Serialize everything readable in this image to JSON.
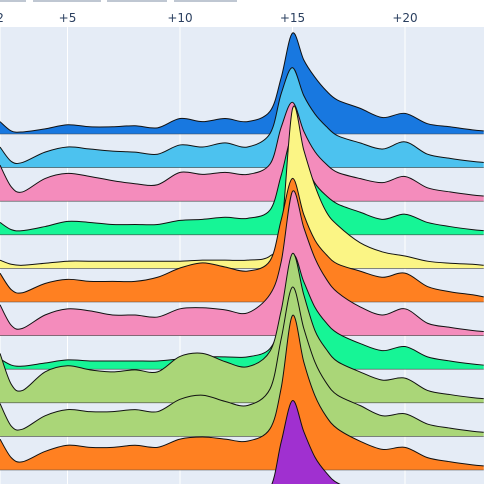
{
  "chart_data": {
    "type": "area",
    "subtype": "ridgeline",
    "title": "",
    "xlabel": "",
    "ylabel": "",
    "xlim": [
      2,
      23.5
    ],
    "grid": true,
    "legend": "none",
    "x_ticks": [
      {
        "value": 2,
        "label": "2"
      },
      {
        "value": 5,
        "label": "+5"
      },
      {
        "value": 10,
        "label": "+10"
      },
      {
        "value": 15,
        "label": "+15"
      },
      {
        "value": 20,
        "label": "+20"
      }
    ],
    "x": [
      2,
      2.5,
      3,
      4,
      5,
      6,
      7,
      8,
      9,
      10,
      11,
      12,
      13,
      14,
      14.5,
      15,
      15.5,
      16,
      16.5,
      17,
      18,
      19,
      20,
      21,
      22,
      23,
      23.5
    ],
    "series": [
      {
        "color": "#1878e0",
        "values": [
          0.12,
          0.03,
          0.02,
          0.05,
          0.09,
          0.07,
          0.07,
          0.08,
          0.06,
          0.15,
          0.12,
          0.15,
          0.12,
          0.22,
          0.55,
          0.98,
          0.72,
          0.55,
          0.42,
          0.33,
          0.25,
          0.16,
          0.2,
          0.1,
          0.07,
          0.04,
          0.03
        ]
      },
      {
        "color": "#4cc2ef",
        "values": [
          0.2,
          0.06,
          0.05,
          0.15,
          0.2,
          0.18,
          0.16,
          0.15,
          0.13,
          0.22,
          0.2,
          0.24,
          0.2,
          0.33,
          0.72,
          0.97,
          0.7,
          0.52,
          0.4,
          0.31,
          0.24,
          0.18,
          0.25,
          0.13,
          0.09,
          0.06,
          0.05
        ]
      },
      {
        "color": "#f48cbc",
        "values": [
          0.35,
          0.14,
          0.09,
          0.22,
          0.27,
          0.24,
          0.2,
          0.17,
          0.16,
          0.28,
          0.26,
          0.28,
          0.26,
          0.36,
          0.72,
          0.96,
          0.68,
          0.48,
          0.36,
          0.28,
          0.22,
          0.18,
          0.24,
          0.13,
          0.09,
          0.06,
          0.05
        ]
      },
      {
        "color": "#16f596",
        "values": [
          0.12,
          0.05,
          0.04,
          0.08,
          0.13,
          0.12,
          0.1,
          0.1,
          0.1,
          0.14,
          0.15,
          0.17,
          0.16,
          0.24,
          0.58,
          0.96,
          0.72,
          0.5,
          0.38,
          0.3,
          0.22,
          0.15,
          0.2,
          0.12,
          0.08,
          0.05,
          0.04
        ]
      },
      {
        "color": "#fbf585",
        "values": [
          0.08,
          0.04,
          0.03,
          0.05,
          0.07,
          0.07,
          0.07,
          0.07,
          0.07,
          0.07,
          0.08,
          0.08,
          0.08,
          0.12,
          0.35,
          1.55,
          1.15,
          0.8,
          0.55,
          0.42,
          0.25,
          0.16,
          0.12,
          0.07,
          0.05,
          0.04,
          0.03
        ]
      },
      {
        "color": "#ff8021",
        "values": [
          0.28,
          0.12,
          0.09,
          0.18,
          0.22,
          0.2,
          0.2,
          0.2,
          0.24,
          0.33,
          0.38,
          0.34,
          0.3,
          0.4,
          0.8,
          1.2,
          0.85,
          0.6,
          0.46,
          0.37,
          0.3,
          0.24,
          0.28,
          0.15,
          0.1,
          0.07,
          0.05
        ]
      },
      {
        "color": "#f48cbc",
        "values": [
          0.3,
          0.1,
          0.07,
          0.2,
          0.26,
          0.24,
          0.2,
          0.2,
          0.18,
          0.26,
          0.27,
          0.25,
          0.22,
          0.4,
          0.72,
          1.4,
          1.05,
          0.75,
          0.55,
          0.42,
          0.28,
          0.2,
          0.26,
          0.12,
          0.08,
          0.05,
          0.04
        ]
      },
      {
        "color": "#16f596",
        "values": [
          0.1,
          0.04,
          0.03,
          0.06,
          0.09,
          0.08,
          0.08,
          0.08,
          0.08,
          0.1,
          0.12,
          0.12,
          0.12,
          0.2,
          0.5,
          1.1,
          0.85,
          0.6,
          0.45,
          0.35,
          0.25,
          0.18,
          0.22,
          0.12,
          0.08,
          0.05,
          0.04
        ]
      },
      {
        "color": "#aad678",
        "values": [
          0.48,
          0.18,
          0.12,
          0.3,
          0.36,
          0.32,
          0.3,
          0.32,
          0.3,
          0.45,
          0.48,
          0.4,
          0.35,
          0.5,
          0.9,
          1.45,
          1.05,
          0.7,
          0.52,
          0.4,
          0.3,
          0.22,
          0.24,
          0.12,
          0.08,
          0.05,
          0.04
        ]
      },
      {
        "color": "#aad678",
        "values": [
          0.32,
          0.1,
          0.07,
          0.2,
          0.26,
          0.24,
          0.24,
          0.26,
          0.24,
          0.36,
          0.4,
          0.34,
          0.3,
          0.46,
          0.95,
          1.45,
          1.05,
          0.72,
          0.52,
          0.4,
          0.3,
          0.2,
          0.22,
          0.12,
          0.08,
          0.05,
          0.04
        ]
      },
      {
        "color": "#ff8021",
        "values": [
          0.3,
          0.12,
          0.08,
          0.18,
          0.24,
          0.22,
          0.22,
          0.24,
          0.22,
          0.3,
          0.32,
          0.3,
          0.28,
          0.4,
          0.8,
          1.5,
          1.05,
          0.72,
          0.52,
          0.4,
          0.28,
          0.2,
          0.22,
          0.12,
          0.08,
          0.05,
          0.04
        ]
      },
      {
        "color": "#a030d0",
        "values": [
          0.02,
          0.01,
          0.01,
          0.02,
          0.03,
          0.03,
          0.03,
          0.03,
          0.03,
          0.04,
          0.05,
          0.05,
          0.05,
          0.15,
          0.6,
          1.0,
          0.7,
          0.45,
          0.3,
          0.2,
          0.12,
          0.08,
          0.06,
          0.04,
          0.03,
          0.02,
          0.02
        ]
      }
    ]
  }
}
